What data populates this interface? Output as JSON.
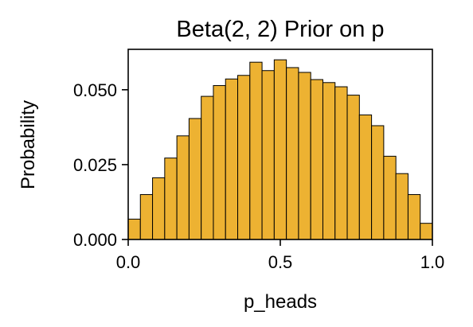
{
  "chart_data": {
    "type": "bar",
    "title": "Beta(2, 2) Prior on p",
    "xlabel": "p_heads",
    "ylabel": "Probability",
    "xlim": [
      0.0,
      1.0
    ],
    "ylim": [
      0.0,
      0.0635
    ],
    "bin_width": 0.04,
    "x_ticks": [
      0.0,
      0.5,
      1.0
    ],
    "x_tick_labels": [
      "0.0",
      "0.5",
      "1.0"
    ],
    "y_ticks": [
      0.0,
      0.025,
      0.05
    ],
    "y_tick_labels": [
      "0.000",
      "0.025",
      "0.050"
    ],
    "bin_edges": [
      0.0,
      0.04,
      0.08,
      0.12,
      0.16,
      0.2,
      0.24,
      0.28,
      0.32,
      0.36,
      0.4,
      0.44,
      0.48,
      0.52,
      0.56,
      0.6,
      0.64,
      0.68,
      0.72,
      0.76,
      0.8,
      0.84,
      0.88,
      0.92,
      0.96,
      1.0
    ],
    "values": [
      0.0068,
      0.015,
      0.0206,
      0.0272,
      0.0346,
      0.0404,
      0.0478,
      0.0514,
      0.0536,
      0.0548,
      0.0592,
      0.0564,
      0.06,
      0.0574,
      0.0558,
      0.0534,
      0.0524,
      0.051,
      0.0482,
      0.0416,
      0.038,
      0.0278,
      0.022,
      0.015,
      0.0054
    ],
    "bar_color": "#EDB232",
    "edge_color": "#000000",
    "grid": false
  }
}
